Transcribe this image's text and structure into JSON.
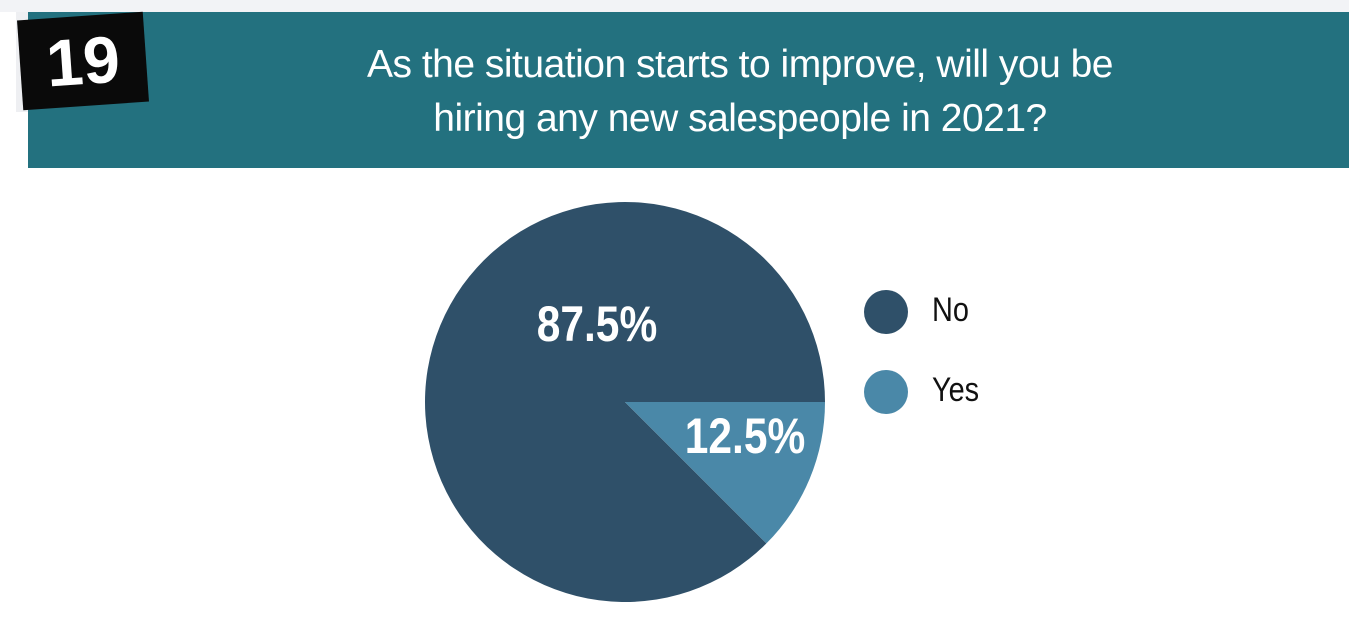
{
  "header": {
    "number": "19",
    "title": "As the situation starts to improve, will you be hiring any new salespeople in 2021?"
  },
  "chart_data": {
    "type": "pie",
    "categories": [
      "No",
      "Yes"
    ],
    "values": [
      87.5,
      12.5
    ],
    "value_labels": [
      "87.5%",
      "12.5%"
    ],
    "colors": [
      "#2f5069",
      "#4a88a8"
    ],
    "legend": "right"
  }
}
